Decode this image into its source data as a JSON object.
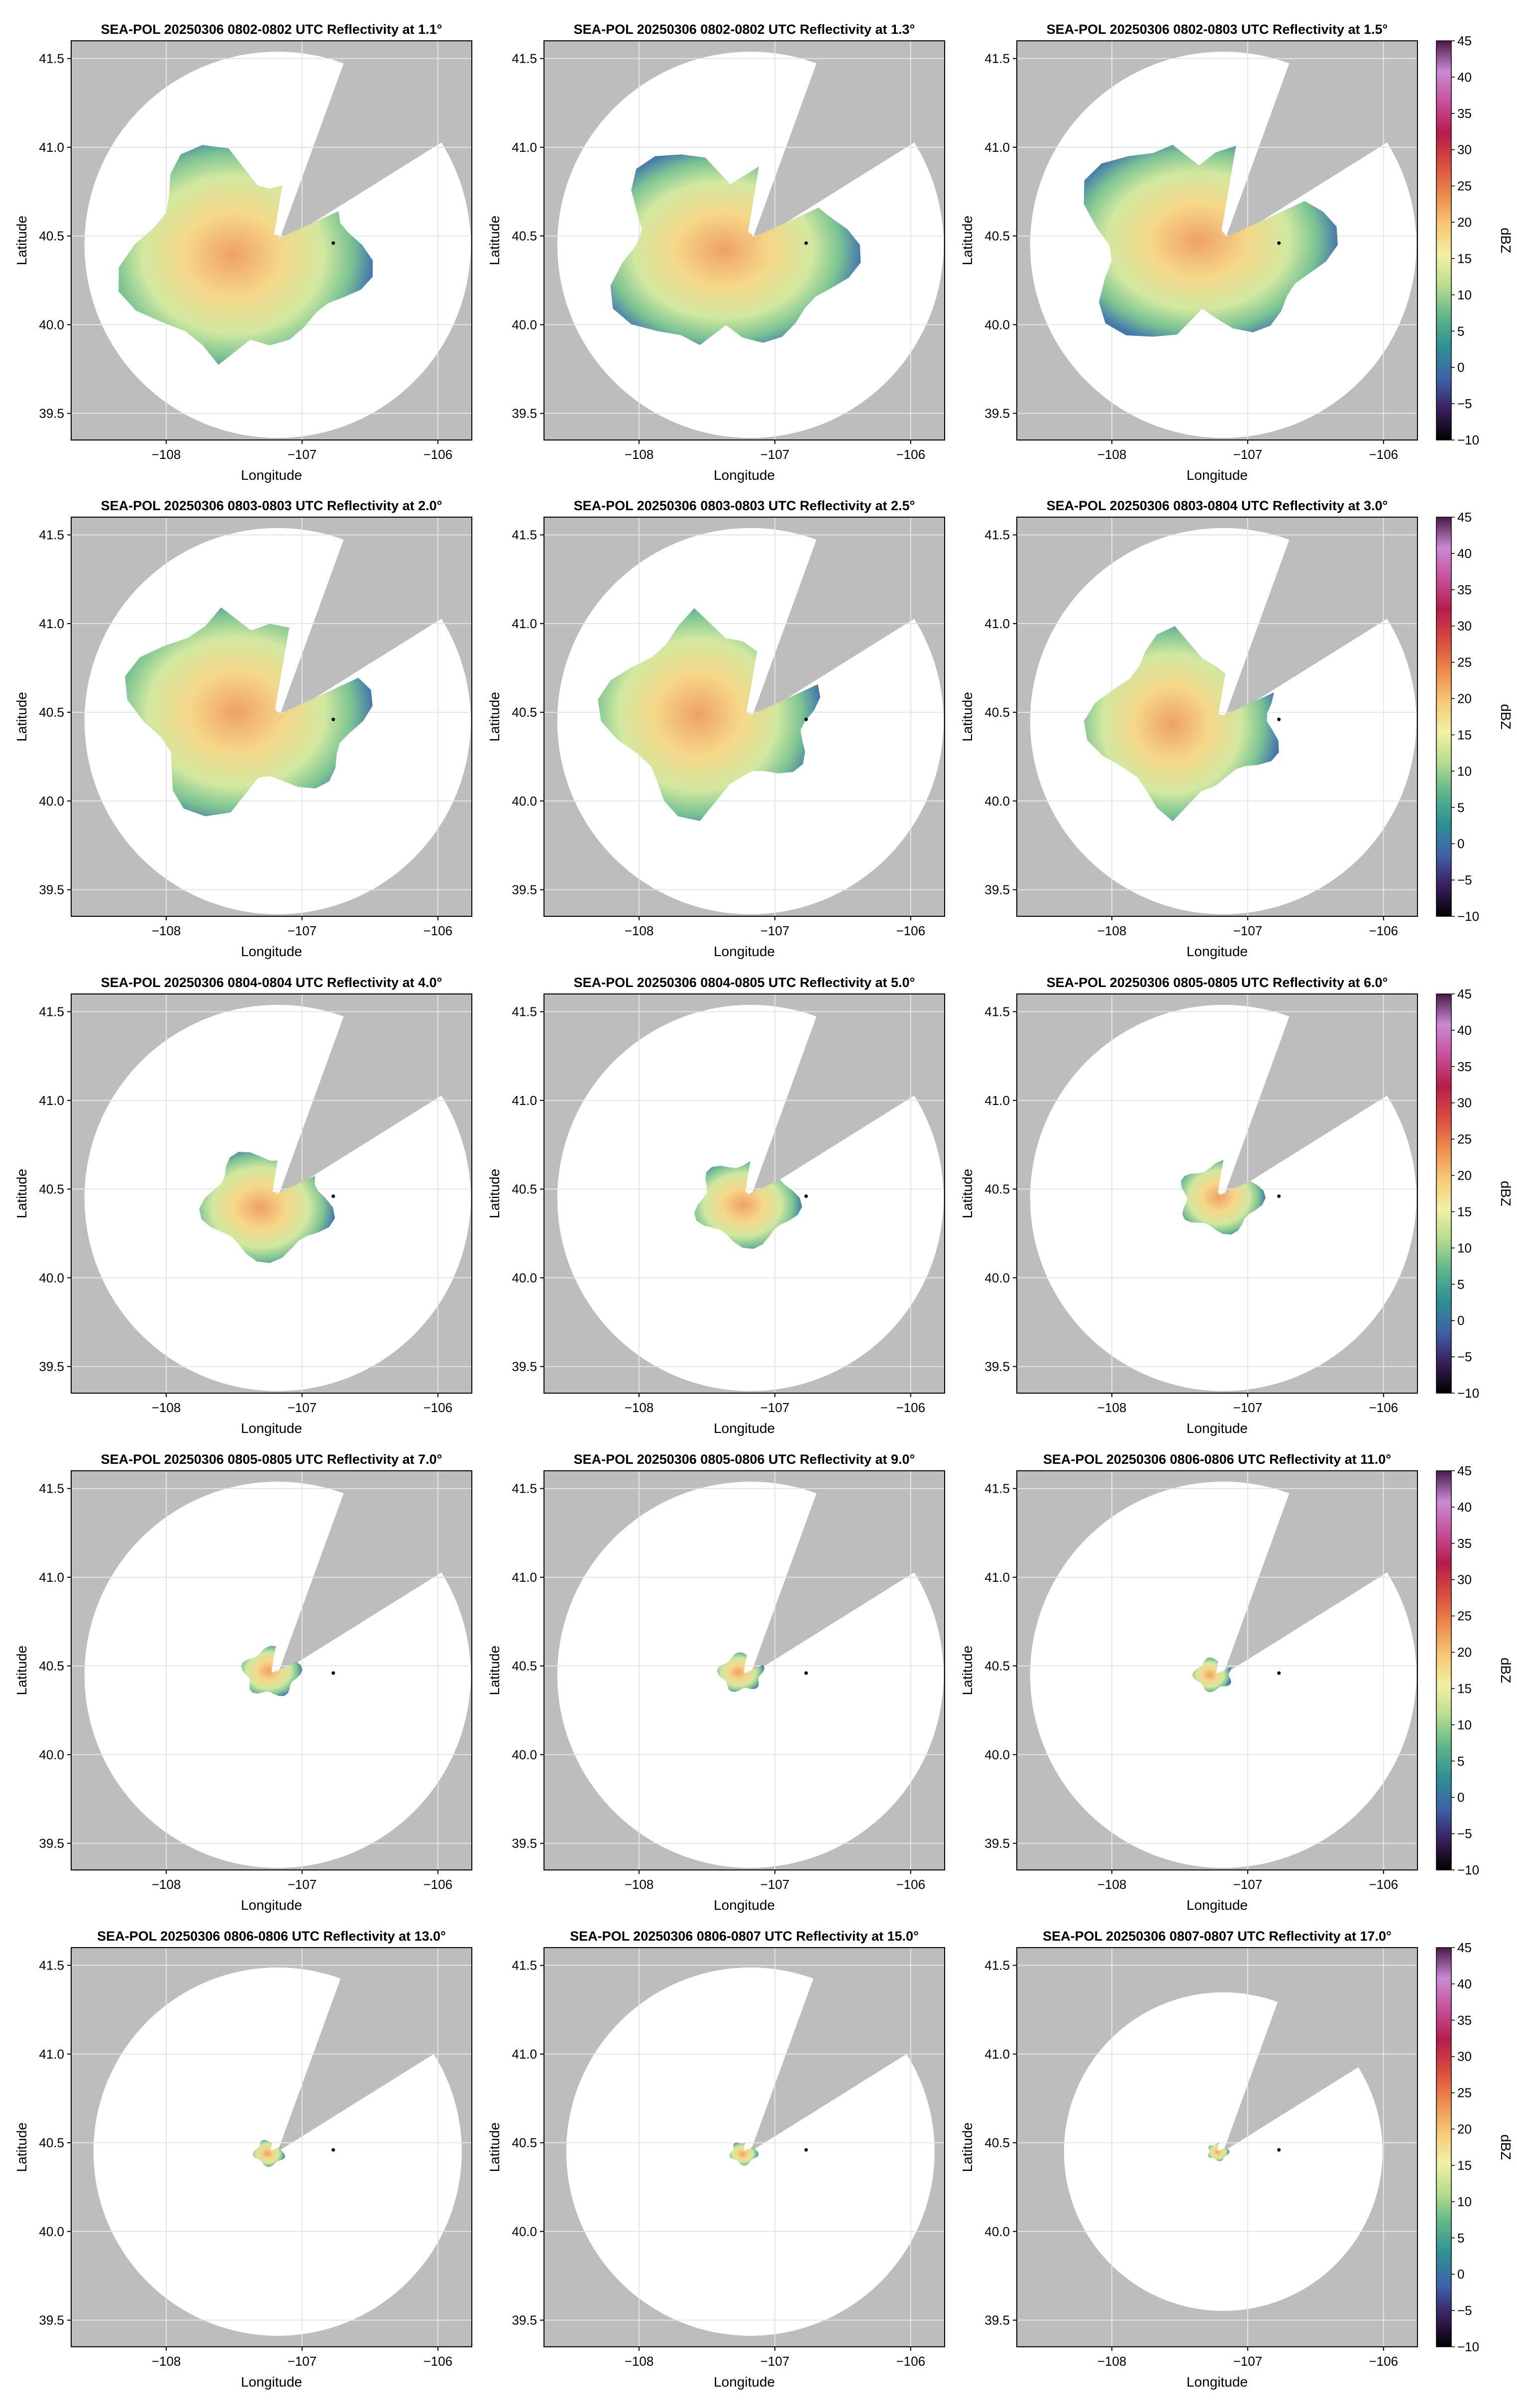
{
  "figure": {
    "xlabel": "Longitude",
    "ylabel": "Latitude",
    "xticks": [
      "−108",
      "−107",
      "−106"
    ],
    "yticks": [
      "41.5",
      "41.0",
      "40.5",
      "40.0",
      "39.5"
    ],
    "colorbar": {
      "label": "dBZ",
      "ticks": [
        "45",
        "40",
        "35",
        "30",
        "25",
        "20",
        "15",
        "10",
        "5",
        "0",
        "−5",
        "−10"
      ],
      "colors": [
        "#000000",
        "#3a1f5e",
        "#3f62a8",
        "#2e8f94",
        "#5db58a",
        "#b7dc8f",
        "#f2f0a4",
        "#f7c874",
        "#ec8a4e",
        "#d84b3e",
        "#b51d4b",
        "#c7509a",
        "#c98ad3",
        "#4a1a4a"
      ]
    }
  },
  "colors": {
    "masked_gray": "#bdbdbd",
    "coverage_white": "#ffffff",
    "grid": "#e5e5e5",
    "radar_site_marker": "#000000"
  },
  "chart_data": [
    {
      "type": "heatmap",
      "title": "SEA-POL 20250306 0802-0802 UTC Reflectivity at 1.1°",
      "elevation_deg": 1.1,
      "xlabel": "Longitude",
      "ylabel": "Latitude",
      "xlim": [
        -108.7,
        -105.75
      ],
      "ylim": [
        39.35,
        41.6
      ],
      "echo_coverage": "widespread, streaks out to ~100 km",
      "colorbar_label": "",
      "colorbar_range": [
        -10,
        45
      ]
    },
    {
      "type": "heatmap",
      "title": "SEA-POL 20250306 0802-0802 UTC Reflectivity at 1.3°",
      "elevation_deg": 1.3,
      "xlabel": "Longitude",
      "ylabel": "Latitude",
      "xlim": [
        -108.7,
        -105.75
      ],
      "ylim": [
        39.35,
        41.6
      ],
      "echo_coverage": "widespread",
      "colorbar_label": "",
      "colorbar_range": [
        -10,
        45
      ]
    },
    {
      "type": "heatmap",
      "title": "SEA-POL 20250306 0802-0803 UTC Reflectivity at 1.5°",
      "elevation_deg": 1.5,
      "xlabel": "Longitude",
      "ylabel": "Latitude",
      "xlim": [
        -108.7,
        -105.75
      ],
      "ylim": [
        39.35,
        41.6
      ],
      "echo_coverage": "widespread",
      "colorbar_label": "dBZ",
      "colorbar_range": [
        -10,
        45
      ]
    },
    {
      "type": "heatmap",
      "title": "SEA-POL 20250306 0803-0803 UTC Reflectivity at 2.0°",
      "elevation_deg": 2.0,
      "xlabel": "Longitude",
      "ylabel": "Latitude",
      "xlim": [
        -108.7,
        -105.75
      ],
      "ylim": [
        39.35,
        41.6
      ],
      "echo_coverage": "widespread",
      "colorbar_label": "",
      "colorbar_range": [
        -10,
        45
      ]
    },
    {
      "type": "heatmap",
      "title": "SEA-POL 20250306 0803-0803 UTC Reflectivity at 2.5°",
      "elevation_deg": 2.5,
      "xlabel": "Longitude",
      "ylabel": "Latitude",
      "xlim": [
        -108.7,
        -105.75
      ],
      "ylim": [
        39.35,
        41.6
      ],
      "echo_coverage": "widespread",
      "colorbar_label": "",
      "colorbar_range": [
        -10,
        45
      ]
    },
    {
      "type": "heatmap",
      "title": "SEA-POL 20250306 0803-0804 UTC Reflectivity at 3.0°",
      "elevation_deg": 3.0,
      "xlabel": "Longitude",
      "ylabel": "Latitude",
      "xlim": [
        -108.7,
        -105.75
      ],
      "ylim": [
        39.35,
        41.6
      ],
      "echo_coverage": "broad",
      "colorbar_label": "dBZ",
      "colorbar_range": [
        -10,
        45
      ]
    },
    {
      "type": "heatmap",
      "title": "SEA-POL 20250306 0804-0804 UTC Reflectivity at 4.0°",
      "elevation_deg": 4.0,
      "xlabel": "Longitude",
      "ylabel": "Latitude",
      "xlim": [
        -108.7,
        -105.75
      ],
      "ylim": [
        39.35,
        41.6
      ],
      "echo_coverage": "moderate",
      "colorbar_label": "",
      "colorbar_range": [
        -10,
        45
      ]
    },
    {
      "type": "heatmap",
      "title": "SEA-POL 20250306 0804-0805 UTC Reflectivity at 5.0°",
      "elevation_deg": 5.0,
      "xlabel": "Longitude",
      "ylabel": "Latitude",
      "xlim": [
        -108.7,
        -105.75
      ],
      "ylim": [
        39.35,
        41.6
      ],
      "echo_coverage": "moderate",
      "colorbar_label": "",
      "colorbar_range": [
        -10,
        45
      ]
    },
    {
      "type": "heatmap",
      "title": "SEA-POL 20250306 0805-0805 UTC Reflectivity at 6.0°",
      "elevation_deg": 6.0,
      "xlabel": "Longitude",
      "ylabel": "Latitude",
      "xlim": [
        -108.7,
        -105.75
      ],
      "ylim": [
        39.35,
        41.6
      ],
      "echo_coverage": "compact",
      "colorbar_label": "dBZ",
      "colorbar_range": [
        -10,
        45
      ]
    },
    {
      "type": "heatmap",
      "title": "SEA-POL 20250306 0805-0805 UTC Reflectivity at 7.0°",
      "elevation_deg": 7.0,
      "xlabel": "Longitude",
      "ylabel": "Latitude",
      "xlim": [
        -108.7,
        -105.75
      ],
      "ylim": [
        39.35,
        41.6
      ],
      "echo_coverage": "compact",
      "colorbar_label": "",
      "colorbar_range": [
        -10,
        45
      ]
    },
    {
      "type": "heatmap",
      "title": "SEA-POL 20250306 0805-0806 UTC Reflectivity at 9.0°",
      "elevation_deg": 9.0,
      "xlabel": "Longitude",
      "ylabel": "Latitude",
      "xlim": [
        -108.7,
        -105.75
      ],
      "ylim": [
        39.35,
        41.6
      ],
      "echo_coverage": "small",
      "colorbar_label": "",
      "colorbar_range": [
        -10,
        45
      ]
    },
    {
      "type": "heatmap",
      "title": "SEA-POL 20250306 0806-0806 UTC Reflectivity at 11.0°",
      "elevation_deg": 11.0,
      "xlabel": "Longitude",
      "ylabel": "Latitude",
      "xlim": [
        -108.7,
        -105.75
      ],
      "ylim": [
        39.35,
        41.6
      ],
      "echo_coverage": "small",
      "colorbar_label": "dBZ",
      "colorbar_range": [
        -10,
        45
      ]
    },
    {
      "type": "heatmap",
      "title": "SEA-POL 20250306 0806-0806 UTC Reflectivity at 13.0°",
      "elevation_deg": 13.0,
      "xlabel": "Longitude",
      "ylabel": "Latitude",
      "xlim": [
        -108.7,
        -105.75
      ],
      "ylim": [
        39.35,
        41.6
      ],
      "echo_coverage": "very small",
      "colorbar_label": "",
      "colorbar_range": [
        -10,
        45
      ]
    },
    {
      "type": "heatmap",
      "title": "SEA-POL 20250306 0806-0807 UTC Reflectivity at 15.0°",
      "elevation_deg": 15.0,
      "xlabel": "Longitude",
      "ylabel": "Latitude",
      "xlim": [
        -108.7,
        -105.75
      ],
      "ylim": [
        39.35,
        41.6
      ],
      "echo_coverage": "very small",
      "colorbar_label": "",
      "colorbar_range": [
        -10,
        45
      ]
    },
    {
      "type": "heatmap",
      "title": "SEA-POL 20250306 0807-0807 UTC Reflectivity at 17.0°",
      "elevation_deg": 17.0,
      "xlabel": "Longitude",
      "ylabel": "Latitude",
      "xlim": [
        -108.7,
        -105.75
      ],
      "ylim": [
        39.35,
        41.6
      ],
      "echo_coverage": "very small",
      "colorbar_label": "dBZ",
      "colorbar_range": [
        -10,
        45
      ]
    }
  ]
}
